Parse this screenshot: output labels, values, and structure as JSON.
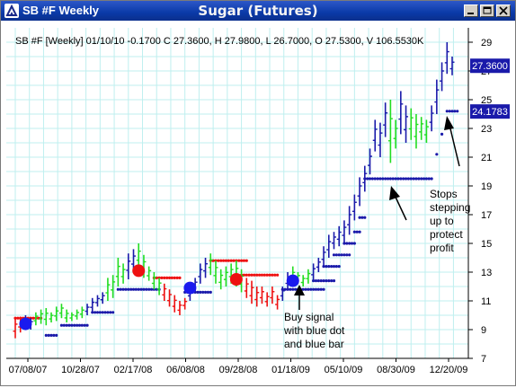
{
  "window": {
    "title": "SB #F Weekly",
    "chart_name": "Sugar (Futures)",
    "controls": {
      "minimize": "minimize",
      "maximize": "maximize",
      "close": "close"
    }
  },
  "info_line": "SB #F [Weekly] 01/10/10 -0.1700 C 27.3600, H 27.9800, L 26.7000, O 27.5300, V 106.5530K",
  "price_tags": {
    "last_close": "27.3600",
    "stop_level": "24.1783"
  },
  "colors": {
    "up": "#22dd22",
    "down": "#ee1111",
    "neutral": "#1a1aaa",
    "buy_signal": "#1a1aee",
    "sell_signal": "#ee1111",
    "grid": "#bfefef",
    "tag_bg": "#1a1aaa"
  },
  "annotations": [
    {
      "name": "buy-signal-annotation",
      "lines": [
        "Buy signal",
        "with blue dot",
        "and blue bar"
      ]
    },
    {
      "name": "stops-annotation",
      "lines": [
        "Stops",
        "stepping",
        "up to",
        "protect",
        "profit"
      ]
    }
  ],
  "chart_data": {
    "type": "ohlc",
    "title": "SB #F [Weekly]",
    "y_ticks": [
      7,
      9,
      11,
      13,
      15,
      17,
      19,
      21,
      23,
      25,
      27,
      29
    ],
    "ylim": [
      7,
      30
    ],
    "x_ticks": [
      "07/08/07",
      "10/28/07",
      "02/17/08",
      "06/08/08",
      "09/28/08",
      "01/18/09",
      "05/10/09",
      "08/30/09",
      "12/20/09"
    ],
    "grid": true,
    "price_series": [
      {
        "c": "r",
        "hl": [
          8.4,
          9.8
        ]
      },
      {
        "c": "r",
        "hl": [
          8.8,
          9.9
        ]
      },
      {
        "c": "b",
        "hl": [
          9.1,
          10.0
        ]
      },
      {
        "c": "b",
        "hl": [
          9.0,
          9.8
        ]
      },
      {
        "c": "g",
        "hl": [
          9.3,
          10.2
        ]
      },
      {
        "c": "g",
        "hl": [
          9.4,
          10.4
        ]
      },
      {
        "c": "g",
        "hl": [
          9.3,
          10.5
        ]
      },
      {
        "c": "g",
        "hl": [
          9.5,
          10.2
        ]
      },
      {
        "c": "g",
        "hl": [
          9.6,
          10.6
        ]
      },
      {
        "c": "g",
        "hl": [
          9.8,
          10.8
        ]
      },
      {
        "c": "g",
        "hl": [
          9.5,
          10.4
        ]
      },
      {
        "c": "g",
        "hl": [
          9.6,
          10.2
        ]
      },
      {
        "c": "g",
        "hl": [
          9.7,
          10.4
        ]
      },
      {
        "c": "g",
        "hl": [
          9.8,
          10.6
        ]
      },
      {
        "c": "b",
        "hl": [
          10.0,
          10.8
        ]
      },
      {
        "c": "b",
        "hl": [
          10.2,
          11.2
        ]
      },
      {
        "c": "b",
        "hl": [
          10.6,
          11.4
        ]
      },
      {
        "c": "b",
        "hl": [
          10.8,
          11.6
        ]
      },
      {
        "c": "g",
        "hl": [
          11.0,
          12.6
        ]
      },
      {
        "c": "g",
        "hl": [
          11.2,
          12.8
        ]
      },
      {
        "c": "g",
        "hl": [
          12.0,
          14.0
        ]
      },
      {
        "c": "g",
        "hl": [
          12.2,
          13.6
        ]
      },
      {
        "c": "b",
        "hl": [
          12.5,
          14.3
        ]
      },
      {
        "c": "b",
        "hl": [
          13.0,
          14.6
        ]
      },
      {
        "c": "g",
        "hl": [
          13.2,
          15.0
        ]
      },
      {
        "c": "g",
        "hl": [
          12.6,
          14.2
        ]
      },
      {
        "c": "g",
        "hl": [
          12.4,
          13.4
        ]
      },
      {
        "c": "g",
        "hl": [
          11.8,
          13.0
        ]
      },
      {
        "c": "g",
        "hl": [
          11.4,
          12.6
        ]
      },
      {
        "c": "r",
        "hl": [
          11.0,
          12.2
        ]
      },
      {
        "c": "r",
        "hl": [
          10.6,
          11.8
        ]
      },
      {
        "c": "r",
        "hl": [
          10.2,
          11.4
        ]
      },
      {
        "c": "r",
        "hl": [
          10.0,
          11.0
        ]
      },
      {
        "c": "r",
        "hl": [
          10.4,
          11.2
        ]
      },
      {
        "c": "b",
        "hl": [
          11.0,
          12.0
        ]
      },
      {
        "c": "b",
        "hl": [
          11.6,
          12.6
        ]
      },
      {
        "c": "b",
        "hl": [
          12.2,
          13.6
        ]
      },
      {
        "c": "b",
        "hl": [
          12.6,
          14.0
        ]
      },
      {
        "c": "g",
        "hl": [
          12.8,
          14.3
        ]
      },
      {
        "c": "g",
        "hl": [
          12.2,
          13.8
        ]
      },
      {
        "c": "g",
        "hl": [
          11.8,
          13.2
        ]
      },
      {
        "c": "g",
        "hl": [
          12.0,
          13.4
        ]
      },
      {
        "c": "g",
        "hl": [
          12.2,
          13.6
        ]
      },
      {
        "c": "g",
        "hl": [
          12.0,
          13.8
        ]
      },
      {
        "c": "g",
        "hl": [
          11.6,
          13.2
        ]
      },
      {
        "c": "r",
        "hl": [
          11.2,
          12.6
        ]
      },
      {
        "c": "r",
        "hl": [
          10.8,
          12.4
        ]
      },
      {
        "c": "r",
        "hl": [
          10.6,
          12.0
        ]
      },
      {
        "c": "r",
        "hl": [
          10.8,
          12.0
        ]
      },
      {
        "c": "r",
        "hl": [
          10.6,
          11.6
        ]
      },
      {
        "c": "r",
        "hl": [
          10.8,
          12.0
        ]
      },
      {
        "c": "r",
        "hl": [
          10.4,
          11.4
        ]
      },
      {
        "c": "b",
        "hl": [
          11.0,
          12.0
        ]
      },
      {
        "c": "b",
        "hl": [
          11.8,
          13.0
        ]
      },
      {
        "c": "g",
        "hl": [
          12.0,
          13.4
        ]
      },
      {
        "c": "g",
        "hl": [
          12.2,
          13.0
        ]
      },
      {
        "c": "g",
        "hl": [
          12.0,
          12.8
        ]
      },
      {
        "c": "g",
        "hl": [
          12.2,
          13.2
        ]
      },
      {
        "c": "b",
        "hl": [
          12.4,
          13.6
        ]
      },
      {
        "c": "b",
        "hl": [
          13.0,
          14.0
        ]
      },
      {
        "c": "b",
        "hl": [
          13.4,
          14.8
        ]
      },
      {
        "c": "b",
        "hl": [
          14.0,
          15.6
        ]
      },
      {
        "c": "b",
        "hl": [
          14.6,
          15.8
        ]
      },
      {
        "c": "b",
        "hl": [
          14.8,
          16.2
        ]
      },
      {
        "c": "b",
        "hl": [
          15.0,
          16.6
        ]
      },
      {
        "c": "b",
        "hl": [
          15.6,
          17.6
        ]
      },
      {
        "c": "b",
        "hl": [
          16.6,
          18.4
        ]
      },
      {
        "c": "b",
        "hl": [
          17.6,
          19.6
        ]
      },
      {
        "c": "b",
        "hl": [
          18.6,
          20.4
        ]
      },
      {
        "c": "b",
        "hl": [
          19.8,
          21.6
        ]
      },
      {
        "c": "b",
        "hl": [
          21.4,
          23.6
        ]
      },
      {
        "c": "b",
        "hl": [
          21.0,
          23.4
        ]
      },
      {
        "c": "b",
        "hl": [
          22.4,
          24.8
        ]
      },
      {
        "c": "g",
        "hl": [
          20.6,
          25.0
        ]
      },
      {
        "c": "g",
        "hl": [
          21.6,
          23.6
        ]
      },
      {
        "c": "b",
        "hl": [
          22.6,
          25.6
        ]
      },
      {
        "c": "b",
        "hl": [
          22.0,
          24.6
        ]
      },
      {
        "c": "g",
        "hl": [
          22.2,
          24.4
        ]
      },
      {
        "c": "g",
        "hl": [
          21.6,
          24.0
        ]
      },
      {
        "c": "g",
        "hl": [
          22.2,
          23.8
        ]
      },
      {
        "c": "g",
        "hl": [
          22.0,
          23.6
        ]
      },
      {
        "c": "b",
        "hl": [
          22.8,
          24.6
        ]
      },
      {
        "c": "b",
        "hl": [
          24.0,
          26.4
        ]
      },
      {
        "c": "b",
        "hl": [
          25.6,
          27.6
        ]
      },
      {
        "c": "b",
        "hl": [
          26.8,
          29.0
        ]
      },
      {
        "c": "b",
        "hl": [
          26.7,
          28.0
        ]
      }
    ],
    "stop_levels": [
      {
        "c": "r",
        "from": 0,
        "to": 5,
        "v": 9.8
      },
      {
        "c": "b",
        "from": 6,
        "to": 8,
        "v": 8.6
      },
      {
        "c": "b",
        "from": 9,
        "to": 14,
        "v": 9.3
      },
      {
        "c": "b",
        "from": 15,
        "to": 19,
        "v": 10.2
      },
      {
        "c": "b",
        "from": 20,
        "to": 28,
        "v": 11.8
      },
      {
        "c": "r",
        "from": 27,
        "to": 32,
        "v": 12.6
      },
      {
        "c": "b",
        "from": 33,
        "to": 38,
        "v": 11.6
      },
      {
        "c": "r",
        "from": 38,
        "to": 45,
        "v": 13.8
      },
      {
        "c": "r",
        "from": 44,
        "to": 51,
        "v": 12.8
      },
      {
        "c": "b",
        "from": 52,
        "to": 60,
        "v": 11.8
      },
      {
        "c": "b",
        "from": 58,
        "to": 62,
        "v": 12.4
      },
      {
        "c": "b",
        "from": 60,
        "to": 63,
        "v": 13.4
      },
      {
        "c": "b",
        "from": 62,
        "to": 65,
        "v": 14.2
      },
      {
        "c": "b",
        "from": 64,
        "to": 66,
        "v": 15.0
      },
      {
        "c": "b",
        "from": 66,
        "to": 67,
        "v": 15.8
      },
      {
        "c": "b",
        "from": 67,
        "to": 68,
        "v": 16.8
      },
      {
        "c": "b",
        "from": 68,
        "to": 81,
        "v": 19.5
      },
      {
        "c": "b",
        "from": 82,
        "to": 82,
        "v": 21.2
      },
      {
        "c": "b",
        "from": 83,
        "to": 83,
        "v": 22.6
      },
      {
        "c": "b",
        "from": 84,
        "to": 86,
        "v": 24.2
      }
    ],
    "signals": [
      {
        "type": "buy",
        "bar": 2,
        "v": 9.4
      },
      {
        "type": "sell",
        "bar": 24,
        "v": 13.1
      },
      {
        "type": "buy",
        "bar": 34,
        "v": 11.9
      },
      {
        "type": "sell",
        "bar": 43,
        "v": 12.5
      },
      {
        "type": "buy",
        "bar": 54,
        "v": 12.4
      }
    ]
  }
}
